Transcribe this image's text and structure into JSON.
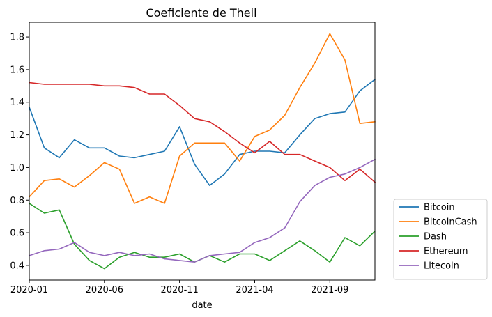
{
  "chart_data": {
    "type": "line",
    "title": "Coeficiente de Theil",
    "xlabel": "date",
    "ylabel": "",
    "x": [
      "2020-01",
      "2020-02",
      "2020-03",
      "2020-04",
      "2020-05",
      "2020-06",
      "2020-07",
      "2020-08",
      "2020-09",
      "2020-10",
      "2020-11",
      "2020-12",
      "2021-01",
      "2021-02",
      "2021-03",
      "2021-04",
      "2021-05",
      "2021-06",
      "2021-07",
      "2021-08",
      "2021-09",
      "2021-10",
      "2021-11",
      "2021-12"
    ],
    "xticks": [
      "2020-01",
      "2020-06",
      "2020-11",
      "2021-04",
      "2021-09"
    ],
    "yticks": [
      "0.4",
      "0.6",
      "0.8",
      "1.0",
      "1.2",
      "1.4",
      "1.6",
      "1.8"
    ],
    "ylim": [
      0.31,
      1.89
    ],
    "grid": false,
    "legend": "outside-right-bottom",
    "series": [
      {
        "name": "Bitcoin",
        "color": "#1f77b4",
        "values": [
          1.37,
          1.12,
          1.06,
          1.17,
          1.12,
          1.12,
          1.07,
          1.06,
          1.08,
          1.1,
          1.25,
          1.02,
          0.89,
          0.96,
          1.08,
          1.1,
          1.1,
          1.09,
          1.2,
          1.3,
          1.33,
          1.34,
          1.47,
          1.54
        ]
      },
      {
        "name": "BitcoinCash",
        "color": "#ff7f0e",
        "values": [
          0.82,
          0.92,
          0.93,
          0.88,
          0.95,
          1.03,
          0.99,
          0.78,
          0.82,
          0.78,
          1.07,
          1.15,
          1.15,
          1.15,
          1.04,
          1.19,
          1.23,
          1.32,
          1.49,
          1.64,
          1.82,
          1.66,
          1.27,
          1.28
        ]
      },
      {
        "name": "Dash",
        "color": "#2ca02c",
        "values": [
          0.78,
          0.72,
          0.74,
          0.53,
          0.43,
          0.38,
          0.45,
          0.48,
          0.45,
          0.45,
          0.47,
          0.42,
          0.46,
          0.42,
          0.47,
          0.47,
          0.43,
          0.49,
          0.55,
          0.49,
          0.42,
          0.57,
          0.52,
          0.61
        ]
      },
      {
        "name": "Ethereum",
        "color": "#d62728",
        "values": [
          1.52,
          1.51,
          1.51,
          1.51,
          1.51,
          1.5,
          1.5,
          1.49,
          1.45,
          1.45,
          1.38,
          1.3,
          1.28,
          1.22,
          1.15,
          1.09,
          1.16,
          1.08,
          1.08,
          1.04,
          1.0,
          0.92,
          0.99,
          0.91
        ]
      },
      {
        "name": "Litecoin",
        "color": "#9467bd",
        "values": [
          0.46,
          0.49,
          0.5,
          0.54,
          0.48,
          0.46,
          0.48,
          0.46,
          0.47,
          0.44,
          0.43,
          0.42,
          0.46,
          0.47,
          0.48,
          0.54,
          0.57,
          0.63,
          0.79,
          0.89,
          0.94,
          0.96,
          1.0,
          1.05
        ]
      }
    ]
  }
}
